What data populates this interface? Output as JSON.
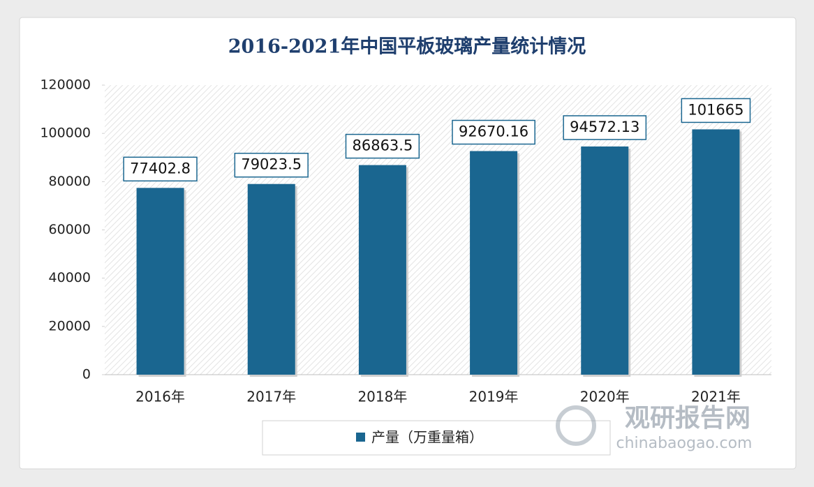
{
  "chart_data": {
    "type": "bar",
    "title": "2016-2021年中国平板玻璃产量统计情况",
    "categories": [
      "2016年",
      "2017年",
      "2018年",
      "2019年",
      "2020年",
      "2021年"
    ],
    "series": [
      {
        "name": "产量（万重量箱）",
        "color": "#1a6690",
        "values": [
          77402.8,
          79023.5,
          86863.5,
          92670.16,
          94572.13,
          101665
        ]
      }
    ],
    "ylim": [
      0,
      120000
    ],
    "yticks": [
      0,
      20000,
      40000,
      60000,
      80000,
      100000,
      120000
    ],
    "legend": "bottom"
  },
  "watermark": {
    "name": "观研报告网",
    "url": "chinabaogao.com"
  }
}
